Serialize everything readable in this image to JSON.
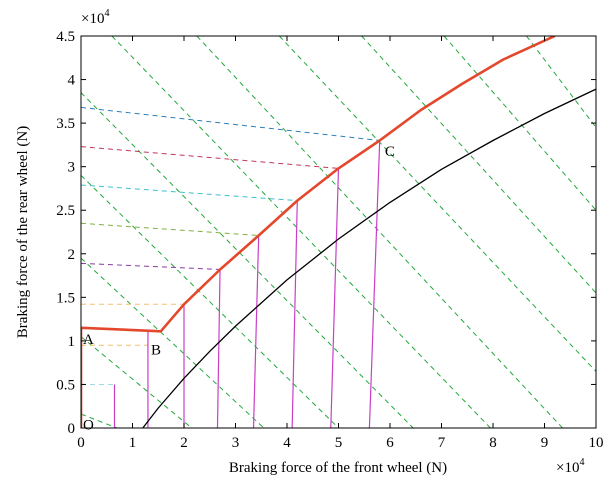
{
  "chart_data": {
    "type": "line",
    "xlabel": "Braking force of the front wheel (N)",
    "ylabel": "Braking force of the rear wheel (N)",
    "x_multiplier": "×10",
    "y_multiplier": "×10",
    "multiplier_exponent": "4",
    "x_unit_scale": 10000,
    "y_unit_scale": 10000,
    "xlim": [
      0,
      100000
    ],
    "ylim": [
      0,
      45000
    ],
    "xticks": [
      0,
      10000,
      20000,
      30000,
      40000,
      50000,
      60000,
      70000,
      80000,
      90000,
      100000
    ],
    "yticks": [
      0,
      5000,
      10000,
      15000,
      20000,
      25000,
      30000,
      35000,
      40000,
      45000
    ],
    "xtick_labels": [
      "0",
      "1",
      "2",
      "3",
      "4",
      "5",
      "6",
      "7",
      "8",
      "9",
      "10"
    ],
    "ytick_labels": [
      "0",
      "0.5",
      "1",
      "1.5",
      "2",
      "2.5",
      "3",
      "3.5",
      "4",
      "4.5"
    ],
    "grid": false,
    "series": [
      {
        "color": "#e4482c",
        "style": "solid",
        "x": [
          0,
          0,
          15500,
          20000,
          27000,
          34500,
          42000,
          50000,
          58000,
          66000,
          74000,
          82000,
          92000
        ],
        "y": [
          0,
          11500,
          11100,
          14200,
          18200,
          22100,
          26100,
          29800,
          33000,
          36500,
          39500,
          42300,
          45000
        ]
      },
      {
        "color": "#000000",
        "style": "solid",
        "x": [
          12000,
          15000,
          20000,
          25000,
          30000,
          40000,
          50000,
          60000,
          70000,
          80000,
          90000,
          100000
        ],
        "y": [
          0,
          2300,
          5700,
          8800,
          11700,
          17000,
          21700,
          25900,
          29700,
          33000,
          36100,
          38900
        ]
      }
    ],
    "green_lines": [
      {
        "x1": 0,
        "y1": 1600,
        "x2": 7000,
        "y2": 0
      },
      {
        "x1": 0,
        "y1": 10500,
        "x2": 21500,
        "y2": 0
      },
      {
        "x1": 0,
        "y1": 19500,
        "x2": 35500,
        "y2": 0
      },
      {
        "x1": 0,
        "y1": 29000,
        "x2": 50000,
        "y2": 0
      },
      {
        "x1": 0,
        "y1": 38500,
        "x2": 64500,
        "y2": 0
      },
      {
        "x1": 6000,
        "y1": 45000,
        "x2": 79500,
        "y2": 0
      },
      {
        "x1": 22500,
        "y1": 45000,
        "x2": 93500,
        "y2": 0
      },
      {
        "x1": 38500,
        "y1": 45000,
        "x2": 100000,
        "y2": 6500
      },
      {
        "x1": 54500,
        "y1": 45000,
        "x2": 100000,
        "y2": 15500
      },
      {
        "x1": 70500,
        "y1": 45000,
        "x2": 100000,
        "y2": 25000
      },
      {
        "x1": 86500,
        "y1": 45000,
        "x2": 100000,
        "y2": 34500
      }
    ],
    "dashed_lines": [
      {
        "color": "#2a7fb8",
        "x1": 0,
        "y1": 36800,
        "x2": 58000,
        "y2": 33000
      },
      {
        "color": "#c2375a",
        "x1": 0,
        "y1": 32300,
        "x2": 50000,
        "y2": 29800
      },
      {
        "color": "#3fbfd0",
        "x1": 0,
        "y1": 27900,
        "x2": 42000,
        "y2": 26100
      },
      {
        "color": "#7fb040",
        "x1": 0,
        "y1": 23500,
        "x2": 34500,
        "y2": 22100
      },
      {
        "color": "#8a3aa0",
        "x1": 0,
        "y1": 18900,
        "x2": 27000,
        "y2": 18200
      },
      {
        "color": "#f0c070",
        "x1": 0,
        "y1": 14200,
        "x2": 20000,
        "y2": 14200
      },
      {
        "color": "#f0c070",
        "x1": 0,
        "y1": 9500,
        "x2": 13000,
        "y2": 9500
      },
      {
        "color": "#a0d8e8",
        "x1": 0,
        "y1": 5000,
        "x2": 6500,
        "y2": 5000
      }
    ],
    "magenta_lines": [
      {
        "x1": 6500,
        "y1": 0,
        "x2": 6500,
        "y2": 5000
      },
      {
        "x1": 13000,
        "y1": 0,
        "x2": 13000,
        "y2": 11200
      },
      {
        "x1": 20000,
        "y1": 0,
        "x2": 20000,
        "y2": 14200
      },
      {
        "x1": 26500,
        "y1": 0,
        "x2": 27000,
        "y2": 18200
      },
      {
        "x1": 33500,
        "y1": 0,
        "x2": 34500,
        "y2": 22100
      },
      {
        "x1": 41000,
        "y1": 0,
        "x2": 42000,
        "y2": 26100
      },
      {
        "x1": 48500,
        "y1": 0,
        "x2": 50000,
        "y2": 29800
      },
      {
        "x1": 56000,
        "y1": 0,
        "x2": 58000,
        "y2": 33000
      }
    ],
    "annotations": [
      {
        "text": "O",
        "x": 400,
        "y": 400
      },
      {
        "text": "A",
        "x": 400,
        "y": 10200
      },
      {
        "text": "B",
        "x": 13600,
        "y": 9000
      },
      {
        "text": "C",
        "x": 59000,
        "y": 31800
      }
    ]
  }
}
